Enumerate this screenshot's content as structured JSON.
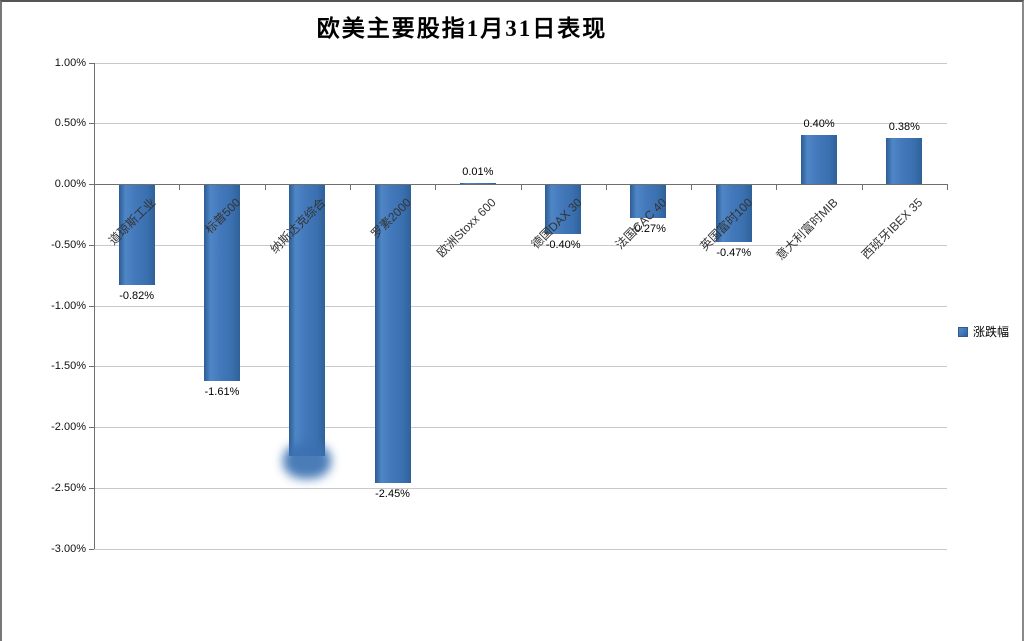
{
  "title": "欧美主要股指1月31日表现",
  "legend": {
    "label": "涨跌幅",
    "position": "right"
  },
  "colors": {
    "bar_main": "#3b74b6",
    "bar_edge": "#2b5c95",
    "bar_highlight": "#4f86c6",
    "gridline": "#c9c9c9",
    "axis": "#6f6f6f",
    "background": "#ffffff"
  },
  "chart_data": {
    "type": "bar",
    "title": "欧美主要股指1月31日表现",
    "series_name": "涨跌幅",
    "categories": [
      "道琼斯工业",
      "标普500",
      "纳斯达克综合",
      "罗素2000",
      "欧洲Stoxx 600",
      "德国DAX 30",
      "法国CAC 40",
      "英国富时100",
      "意大利富时MIB",
      "西班牙IBEX 35"
    ],
    "ids": [
      "dow-jones-industrial",
      "sp-500",
      "nasdaq-composite",
      "russell-2000",
      "europe-stoxx-600",
      "germany-dax-30",
      "france-cac-40",
      "uk-ftse-100",
      "italy-ftse-mib",
      "spain-ibex-35"
    ],
    "values": [
      -0.82,
      -1.61,
      -2.23,
      -2.45,
      0.01,
      -0.4,
      -0.27,
      -0.47,
      0.4,
      0.38
    ],
    "data_labels": [
      "-0.82%",
      "-1.61%",
      "",
      "-2.45%",
      "0.01%",
      "-0.40%",
      "-0.27%",
      "-0.47%",
      "0.40%",
      "0.38%"
    ],
    "nasdaq_label_obscured_by_smudge": true,
    "ylabel": "",
    "xlabel": "",
    "ylim": [
      -3.0,
      1.0
    ],
    "ytick_step": 0.5,
    "ytick_labels": [
      "1.00%",
      "0.50%",
      "0.00%",
      "-0.50%",
      "-1.00%",
      "-1.50%",
      "-2.00%",
      "-2.50%",
      "-3.00%"
    ],
    "grid": true,
    "legend_position": "right",
    "unit": "percent"
  }
}
